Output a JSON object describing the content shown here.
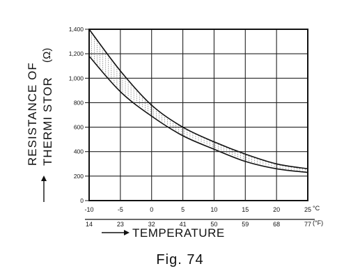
{
  "caption": "Fig. 74",
  "chart_data": {
    "type": "line",
    "ylabel": "RESISTANCE OF THERMISTOR",
    "ylabel_line1": "RESISTANCE OF",
    "ylabel_line2": "THERMI STOR",
    "yunit": "(Ω)",
    "xlabel": "TEMPERATURE",
    "x_unit_c": "°C",
    "x_unit_f": "(°F)",
    "xlim": [
      -10,
      25
    ],
    "ylim": [
      0,
      1400
    ],
    "grid": true,
    "x_ticks_c": [
      "-10",
      "-5",
      "0",
      "5",
      "10",
      "15",
      "20",
      "25"
    ],
    "x_ticks_c_values": [
      -10,
      -5,
      0,
      5,
      10,
      15,
      20,
      25
    ],
    "x_ticks_f": [
      "14",
      "23",
      "32",
      "41",
      "50",
      "59",
      "68",
      "77"
    ],
    "y_ticks": [
      "0",
      "200",
      "400",
      "600",
      "800",
      "1,000",
      "1,200",
      "1,400"
    ],
    "y_ticks_values": [
      0,
      200,
      400,
      600,
      800,
      1000,
      1200,
      1400
    ],
    "x": [
      -10,
      -5,
      0,
      5,
      10,
      15,
      20,
      25
    ],
    "series": [
      {
        "values": [
          1400,
          1060,
          780,
          600,
          480,
          380,
          300,
          260
        ]
      },
      {
        "values": [
          1180,
          890,
          690,
          530,
          420,
          320,
          260,
          230
        ]
      }
    ]
  }
}
